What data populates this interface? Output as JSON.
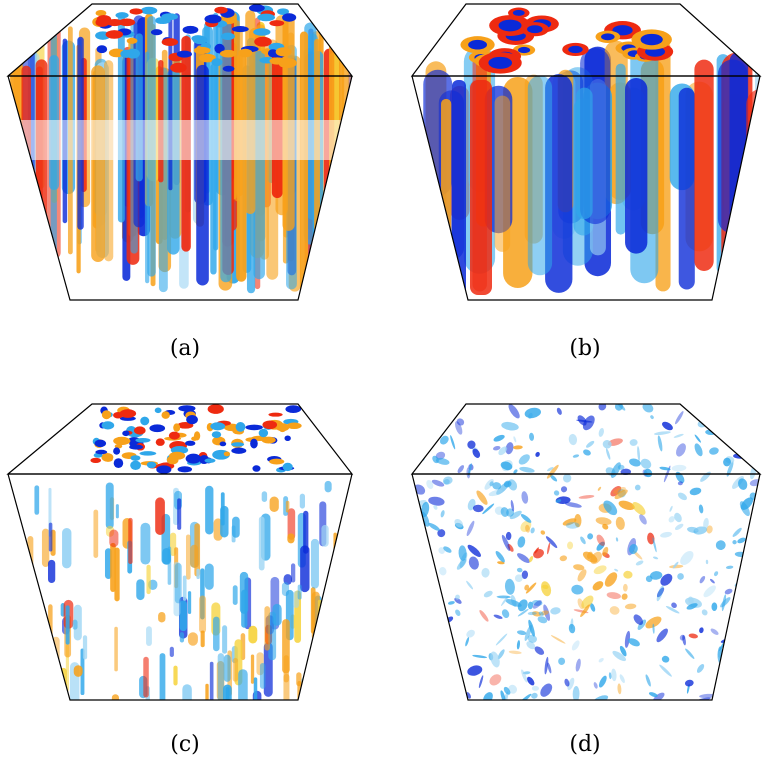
{
  "figure": {
    "panels": [
      {
        "id": "a",
        "caption": "(a)",
        "description_colors": [
          "#0033cc",
          "#33aaee",
          "#ffaa00",
          "#ff2200"
        ]
      },
      {
        "id": "b",
        "caption": "(b)",
        "description_colors": [
          "#0033cc",
          "#33aaee",
          "#ffaa00",
          "#ff2200"
        ]
      },
      {
        "id": "c",
        "caption": "(c)",
        "description_colors": [
          "#0033cc",
          "#33aaee",
          "#ffaa00",
          "#ff2200"
        ]
      },
      {
        "id": "d",
        "caption": "(d)",
        "description_colors": [
          "#0033cc",
          "#33aaee",
          "#ffaa00",
          "#ff2200"
        ]
      }
    ],
    "palette": {
      "deep_blue": "#0a2ad8",
      "light_blue": "#2fa7ea",
      "pale_blue": "#9fd6f4",
      "orange": "#f7a11a",
      "red": "#ee2a10",
      "yellow": "#f6d23a"
    }
  }
}
